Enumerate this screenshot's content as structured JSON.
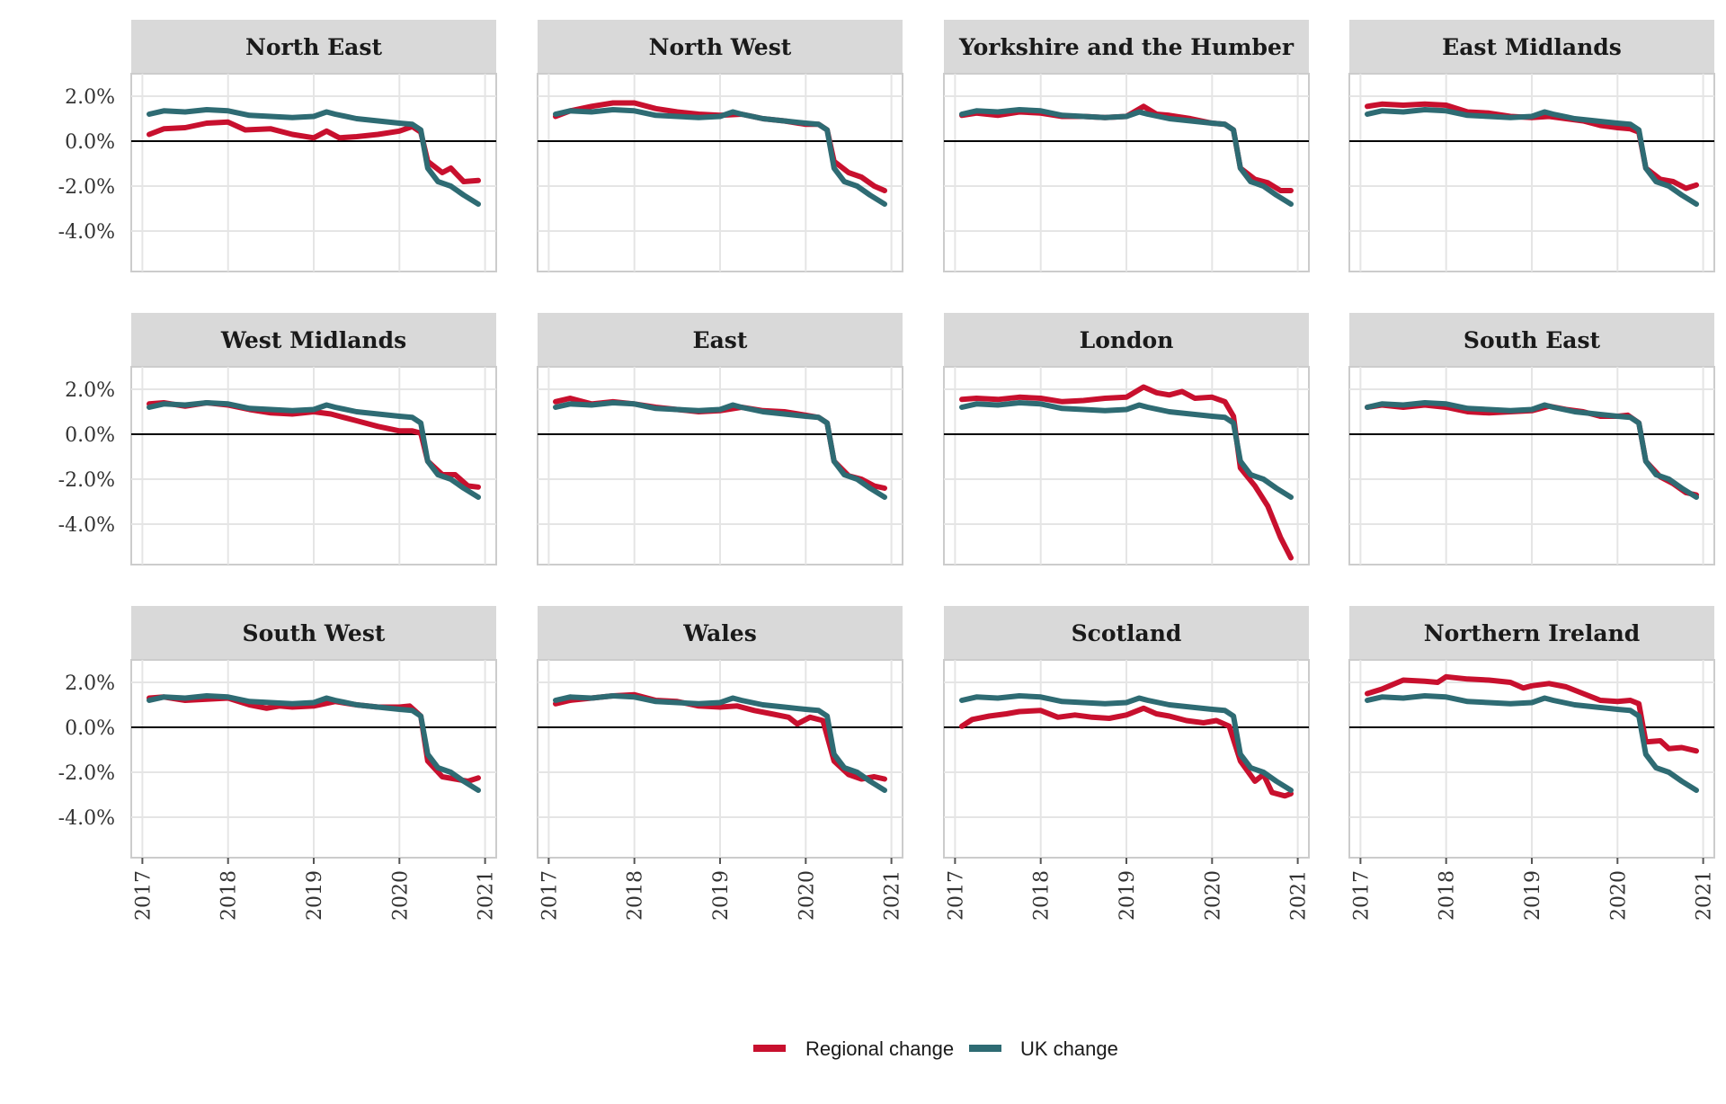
{
  "colors": {
    "regional": "#C8102E",
    "uk": "#2E6B73",
    "strip": "#D9D9D9",
    "panel_border": "#CCCCCC",
    "grid": "#E5E5E5"
  },
  "legend": [
    {
      "name": "regional",
      "label": "Regional change"
    },
    {
      "name": "uk",
      "label": "UK change"
    }
  ],
  "chart_data": {
    "type": "line",
    "layout": "facet-grid-3x4",
    "x_ticks": [
      2017,
      2018,
      2019,
      2020,
      2021
    ],
    "xlim": [
      2016.87,
      2021.13
    ],
    "y_ticks": [
      2,
      0,
      -2,
      -4
    ],
    "y_tick_labels": [
      "2.0%",
      "0.0%",
      "-2.0%",
      "-4.0%"
    ],
    "ylim": [
      -5.8,
      3.0
    ],
    "grid": true,
    "zero_line": true,
    "legend_position": "bottom-center",
    "uk": [
      [
        2017.08,
        1.2
      ],
      [
        2017.25,
        1.35
      ],
      [
        2017.5,
        1.3
      ],
      [
        2017.75,
        1.4
      ],
      [
        2018.0,
        1.35
      ],
      [
        2018.25,
        1.15
      ],
      [
        2018.5,
        1.1
      ],
      [
        2018.75,
        1.05
      ],
      [
        2019.0,
        1.1
      ],
      [
        2019.15,
        1.3
      ],
      [
        2019.25,
        1.2
      ],
      [
        2019.5,
        1.0
      ],
      [
        2019.75,
        0.9
      ],
      [
        2020.0,
        0.8
      ],
      [
        2020.15,
        0.75
      ],
      [
        2020.25,
        0.5
      ],
      [
        2020.33,
        -1.2
      ],
      [
        2020.45,
        -1.8
      ],
      [
        2020.6,
        -2.0
      ],
      [
        2020.75,
        -2.4
      ],
      [
        2020.92,
        -2.8
      ]
    ],
    "panels": [
      {
        "name": "North East",
        "regional": [
          [
            2017.08,
            0.3
          ],
          [
            2017.25,
            0.55
          ],
          [
            2017.5,
            0.6
          ],
          [
            2017.75,
            0.8
          ],
          [
            2018.0,
            0.85
          ],
          [
            2018.2,
            0.5
          ],
          [
            2018.5,
            0.55
          ],
          [
            2018.75,
            0.3
          ],
          [
            2019.0,
            0.15
          ],
          [
            2019.15,
            0.45
          ],
          [
            2019.3,
            0.15
          ],
          [
            2019.5,
            0.2
          ],
          [
            2019.75,
            0.3
          ],
          [
            2020.0,
            0.45
          ],
          [
            2020.15,
            0.65
          ],
          [
            2020.25,
            0.4
          ],
          [
            2020.33,
            -0.9
          ],
          [
            2020.5,
            -1.4
          ],
          [
            2020.6,
            -1.2
          ],
          [
            2020.75,
            -1.8
          ],
          [
            2020.92,
            -1.75
          ]
        ]
      },
      {
        "name": "North West",
        "regional": [
          [
            2017.08,
            1.1
          ],
          [
            2017.25,
            1.35
          ],
          [
            2017.5,
            1.55
          ],
          [
            2017.75,
            1.7
          ],
          [
            2018.0,
            1.7
          ],
          [
            2018.25,
            1.45
          ],
          [
            2018.5,
            1.3
          ],
          [
            2018.75,
            1.2
          ],
          [
            2019.0,
            1.15
          ],
          [
            2019.25,
            1.2
          ],
          [
            2019.5,
            1.0
          ],
          [
            2019.75,
            0.9
          ],
          [
            2020.0,
            0.75
          ],
          [
            2020.15,
            0.75
          ],
          [
            2020.25,
            0.5
          ],
          [
            2020.33,
            -0.9
          ],
          [
            2020.5,
            -1.4
          ],
          [
            2020.65,
            -1.6
          ],
          [
            2020.8,
            -2.0
          ],
          [
            2020.92,
            -2.2
          ]
        ]
      },
      {
        "name": "Yorkshire and the Humber",
        "regional": [
          [
            2017.08,
            1.15
          ],
          [
            2017.25,
            1.25
          ],
          [
            2017.5,
            1.15
          ],
          [
            2017.75,
            1.3
          ],
          [
            2018.0,
            1.25
          ],
          [
            2018.25,
            1.1
          ],
          [
            2018.5,
            1.1
          ],
          [
            2018.75,
            1.05
          ],
          [
            2019.0,
            1.1
          ],
          [
            2019.2,
            1.55
          ],
          [
            2019.35,
            1.2
          ],
          [
            2019.5,
            1.15
          ],
          [
            2019.75,
            1.0
          ],
          [
            2020.0,
            0.8
          ],
          [
            2020.15,
            0.75
          ],
          [
            2020.25,
            0.5
          ],
          [
            2020.33,
            -1.2
          ],
          [
            2020.5,
            -1.7
          ],
          [
            2020.65,
            -1.85
          ],
          [
            2020.8,
            -2.2
          ],
          [
            2020.92,
            -2.2
          ]
        ]
      },
      {
        "name": "East Midlands",
        "regional": [
          [
            2017.08,
            1.55
          ],
          [
            2017.25,
            1.65
          ],
          [
            2017.5,
            1.6
          ],
          [
            2017.75,
            1.65
          ],
          [
            2018.0,
            1.6
          ],
          [
            2018.25,
            1.3
          ],
          [
            2018.5,
            1.25
          ],
          [
            2018.75,
            1.1
          ],
          [
            2019.0,
            1.05
          ],
          [
            2019.2,
            1.1
          ],
          [
            2019.4,
            1.0
          ],
          [
            2019.6,
            0.9
          ],
          [
            2019.8,
            0.7
          ],
          [
            2020.0,
            0.6
          ],
          [
            2020.15,
            0.55
          ],
          [
            2020.25,
            0.4
          ],
          [
            2020.33,
            -1.2
          ],
          [
            2020.5,
            -1.7
          ],
          [
            2020.65,
            -1.8
          ],
          [
            2020.8,
            -2.1
          ],
          [
            2020.92,
            -1.95
          ]
        ]
      },
      {
        "name": "West Midlands",
        "regional": [
          [
            2017.08,
            1.35
          ],
          [
            2017.25,
            1.4
          ],
          [
            2017.5,
            1.25
          ],
          [
            2017.75,
            1.4
          ],
          [
            2018.0,
            1.3
          ],
          [
            2018.25,
            1.1
          ],
          [
            2018.5,
            0.95
          ],
          [
            2018.75,
            0.9
          ],
          [
            2019.0,
            1.0
          ],
          [
            2019.2,
            0.9
          ],
          [
            2019.35,
            0.75
          ],
          [
            2019.5,
            0.6
          ],
          [
            2019.75,
            0.35
          ],
          [
            2020.0,
            0.15
          ],
          [
            2020.15,
            0.15
          ],
          [
            2020.25,
            0.05
          ],
          [
            2020.33,
            -1.2
          ],
          [
            2020.5,
            -1.8
          ],
          [
            2020.65,
            -1.8
          ],
          [
            2020.8,
            -2.3
          ],
          [
            2020.92,
            -2.35
          ]
        ]
      },
      {
        "name": "East",
        "regional": [
          [
            2017.08,
            1.45
          ],
          [
            2017.25,
            1.6
          ],
          [
            2017.5,
            1.35
          ],
          [
            2017.75,
            1.45
          ],
          [
            2018.0,
            1.35
          ],
          [
            2018.25,
            1.2
          ],
          [
            2018.5,
            1.1
          ],
          [
            2018.75,
            1.0
          ],
          [
            2019.0,
            1.05
          ],
          [
            2019.25,
            1.2
          ],
          [
            2019.5,
            1.05
          ],
          [
            2019.75,
            1.0
          ],
          [
            2020.0,
            0.85
          ],
          [
            2020.15,
            0.75
          ],
          [
            2020.25,
            0.5
          ],
          [
            2020.33,
            -1.2
          ],
          [
            2020.5,
            -1.85
          ],
          [
            2020.65,
            -2.0
          ],
          [
            2020.8,
            -2.3
          ],
          [
            2020.92,
            -2.4
          ]
        ]
      },
      {
        "name": "London",
        "regional": [
          [
            2017.08,
            1.55
          ],
          [
            2017.25,
            1.6
          ],
          [
            2017.5,
            1.55
          ],
          [
            2017.75,
            1.65
          ],
          [
            2018.0,
            1.6
          ],
          [
            2018.25,
            1.45
          ],
          [
            2018.5,
            1.5
          ],
          [
            2018.75,
            1.6
          ],
          [
            2019.0,
            1.65
          ],
          [
            2019.2,
            2.1
          ],
          [
            2019.35,
            1.85
          ],
          [
            2019.5,
            1.75
          ],
          [
            2019.65,
            1.9
          ],
          [
            2019.8,
            1.6
          ],
          [
            2020.0,
            1.65
          ],
          [
            2020.15,
            1.45
          ],
          [
            2020.25,
            0.8
          ],
          [
            2020.33,
            -1.5
          ],
          [
            2020.5,
            -2.3
          ],
          [
            2020.65,
            -3.2
          ],
          [
            2020.8,
            -4.6
          ],
          [
            2020.92,
            -5.5
          ]
        ]
      },
      {
        "name": "South East",
        "regional": [
          [
            2017.08,
            1.2
          ],
          [
            2017.25,
            1.3
          ],
          [
            2017.5,
            1.2
          ],
          [
            2017.75,
            1.3
          ],
          [
            2018.0,
            1.2
          ],
          [
            2018.25,
            1.0
          ],
          [
            2018.5,
            0.95
          ],
          [
            2018.75,
            1.0
          ],
          [
            2019.0,
            1.05
          ],
          [
            2019.2,
            1.25
          ],
          [
            2019.4,
            1.1
          ],
          [
            2019.6,
            1.0
          ],
          [
            2019.8,
            0.8
          ],
          [
            2020.0,
            0.8
          ],
          [
            2020.12,
            0.85
          ],
          [
            2020.25,
            0.5
          ],
          [
            2020.33,
            -1.2
          ],
          [
            2020.5,
            -1.9
          ],
          [
            2020.65,
            -2.2
          ],
          [
            2020.8,
            -2.6
          ],
          [
            2020.92,
            -2.7
          ]
        ]
      },
      {
        "name": "South West",
        "regional": [
          [
            2017.08,
            1.3
          ],
          [
            2017.25,
            1.35
          ],
          [
            2017.5,
            1.2
          ],
          [
            2017.75,
            1.25
          ],
          [
            2018.0,
            1.3
          ],
          [
            2018.25,
            1.0
          ],
          [
            2018.45,
            0.85
          ],
          [
            2018.6,
            0.95
          ],
          [
            2018.75,
            0.9
          ],
          [
            2019.0,
            0.95
          ],
          [
            2019.25,
            1.15
          ],
          [
            2019.5,
            1.0
          ],
          [
            2019.75,
            0.9
          ],
          [
            2020.0,
            0.9
          ],
          [
            2020.12,
            0.95
          ],
          [
            2020.25,
            0.5
          ],
          [
            2020.33,
            -1.5
          ],
          [
            2020.5,
            -2.2
          ],
          [
            2020.65,
            -2.3
          ],
          [
            2020.8,
            -2.4
          ],
          [
            2020.92,
            -2.25
          ]
        ]
      },
      {
        "name": "Wales",
        "regional": [
          [
            2017.08,
            1.05
          ],
          [
            2017.25,
            1.2
          ],
          [
            2017.5,
            1.3
          ],
          [
            2017.75,
            1.4
          ],
          [
            2018.0,
            1.45
          ],
          [
            2018.25,
            1.2
          ],
          [
            2018.5,
            1.15
          ],
          [
            2018.75,
            0.95
          ],
          [
            2019.0,
            0.9
          ],
          [
            2019.2,
            0.95
          ],
          [
            2019.4,
            0.75
          ],
          [
            2019.6,
            0.6
          ],
          [
            2019.8,
            0.45
          ],
          [
            2019.9,
            0.15
          ],
          [
            2020.05,
            0.45
          ],
          [
            2020.2,
            0.3
          ],
          [
            2020.33,
            -1.5
          ],
          [
            2020.5,
            -2.1
          ],
          [
            2020.65,
            -2.3
          ],
          [
            2020.8,
            -2.2
          ],
          [
            2020.92,
            -2.3
          ]
        ]
      },
      {
        "name": "Scotland",
        "regional": [
          [
            2017.08,
            0.05
          ],
          [
            2017.2,
            0.35
          ],
          [
            2017.4,
            0.5
          ],
          [
            2017.6,
            0.6
          ],
          [
            2017.75,
            0.7
          ],
          [
            2018.0,
            0.75
          ],
          [
            2018.2,
            0.45
          ],
          [
            2018.4,
            0.55
          ],
          [
            2018.6,
            0.45
          ],
          [
            2018.8,
            0.4
          ],
          [
            2019.0,
            0.55
          ],
          [
            2019.2,
            0.85
          ],
          [
            2019.35,
            0.6
          ],
          [
            2019.5,
            0.5
          ],
          [
            2019.7,
            0.3
          ],
          [
            2019.9,
            0.2
          ],
          [
            2020.05,
            0.3
          ],
          [
            2020.2,
            0.05
          ],
          [
            2020.33,
            -1.5
          ],
          [
            2020.5,
            -2.4
          ],
          [
            2020.6,
            -2.1
          ],
          [
            2020.7,
            -2.9
          ],
          [
            2020.85,
            -3.05
          ],
          [
            2020.92,
            -2.95
          ]
        ]
      },
      {
        "name": "Northern Ireland",
        "regional": [
          [
            2017.08,
            1.5
          ],
          [
            2017.25,
            1.7
          ],
          [
            2017.5,
            2.1
          ],
          [
            2017.75,
            2.05
          ],
          [
            2017.9,
            2.0
          ],
          [
            2018.0,
            2.25
          ],
          [
            2018.25,
            2.15
          ],
          [
            2018.5,
            2.1
          ],
          [
            2018.75,
            2.0
          ],
          [
            2018.9,
            1.75
          ],
          [
            2019.0,
            1.85
          ],
          [
            2019.2,
            1.95
          ],
          [
            2019.4,
            1.8
          ],
          [
            2019.6,
            1.5
          ],
          [
            2019.8,
            1.2
          ],
          [
            2020.0,
            1.15
          ],
          [
            2020.15,
            1.2
          ],
          [
            2020.25,
            1.05
          ],
          [
            2020.33,
            -0.65
          ],
          [
            2020.5,
            -0.6
          ],
          [
            2020.6,
            -0.95
          ],
          [
            2020.75,
            -0.9
          ],
          [
            2020.92,
            -1.05
          ]
        ]
      }
    ]
  }
}
